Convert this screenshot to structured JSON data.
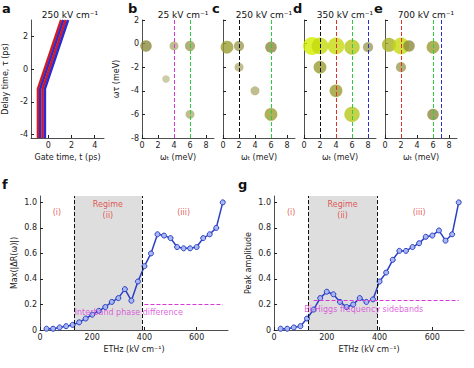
{
  "chart_data": [
    {
      "panel": "a",
      "type": "line",
      "title": "250 kV cm⁻¹",
      "xlabel": "Gate time, t (ps)",
      "ylabel": "Delay time, τ (ps)",
      "xlim": [
        -1.5,
        4.8
      ],
      "xticks": [
        0,
        2,
        4
      ],
      "ylim": [
        -4.2,
        3
      ],
      "yticks": [
        -4,
        -2,
        0,
        2
      ],
      "grid": false,
      "series": [
        {
          "color": "#d7191c",
          "x": [
            -0.9,
            -0.9,
            1.1
          ],
          "values": [
            -4.2,
            -1.2,
            3.0
          ]
        },
        {
          "color": "#2b2bd0",
          "x": [
            -0.7,
            -0.7,
            1.3
          ],
          "values": [
            -4.2,
            -1.2,
            3.0
          ]
        },
        {
          "color": "#d7191c",
          "x": [
            -0.5,
            -0.5,
            1.5
          ],
          "values": [
            -4.2,
            -1.2,
            3.0
          ]
        },
        {
          "color": "#2b2bd0",
          "x": [
            -0.3,
            -0.3,
            1.7
          ],
          "values": [
            -4.2,
            -1.2,
            3.0
          ]
        }
      ]
    },
    {
      "panel": "b",
      "type": "bubble",
      "title": "25 kV cm⁻¹",
      "xlabel": "ωₜ (meV)",
      "ylabel": "ωτ (meV)",
      "xlim": [
        0,
        9
      ],
      "xticks": [
        0,
        2,
        4,
        6,
        8
      ],
      "ylim": [
        -8,
        2
      ],
      "yticks": [
        -8,
        -6,
        -4,
        -2,
        0,
        2
      ],
      "grid": false,
      "x": [
        0.5,
        4,
        6,
        3,
        6
      ],
      "y": [
        -0.2,
        -0.2,
        -0.2,
        -3,
        -6
      ],
      "amplitude": [
        0.5,
        0.3,
        0.4,
        0.2,
        0.3
      ],
      "amplitude_range": [
        0,
        1
      ],
      "vlines": [
        {
          "value": 4,
          "color": "#d63ad6"
        },
        {
          "value": 6,
          "color": "#2ecc40"
        }
      ],
      "line_style": "dashed"
    },
    {
      "panel": "c",
      "type": "bubble",
      "title": "250 kV cm⁻¹",
      "xlabel": "ωₜ (meV)",
      "tick_labels": "x",
      "xlim": [
        0,
        9
      ],
      "xticks": [
        0,
        2,
        4,
        6,
        8
      ],
      "ylim": [
        -8,
        2
      ],
      "yticks": [
        -8,
        -6,
        -4,
        -2,
        0,
        2
      ],
      "grid": false,
      "x": [
        0.5,
        2,
        6,
        2,
        4,
        6
      ],
      "y": [
        -0.3,
        -0.2,
        -0.3,
        -2,
        -4,
        -6
      ],
      "amplitude": [
        0.6,
        0.4,
        0.5,
        0.3,
        0.3,
        0.6
      ],
      "amplitude_range": [
        0,
        1
      ],
      "vlines": [
        {
          "value": 2,
          "color": "#111111"
        },
        {
          "value": 6,
          "color": "#2ecc40"
        }
      ],
      "line_style": "dashed"
    },
    {
      "panel": "d",
      "type": "bubble",
      "title": "350 kV cm⁻¹",
      "xlabel": "ωₜ (meV)",
      "tick_labels": "x",
      "xlim": [
        0,
        9
      ],
      "xticks": [
        0,
        2,
        4,
        6,
        8
      ],
      "ylim": [
        -8,
        2
      ],
      "yticks": [
        -8,
        -6,
        -4,
        -2,
        0,
        2
      ],
      "grid": false,
      "x": [
        1,
        2,
        4,
        6,
        8,
        2,
        4,
        6
      ],
      "y": [
        -0.2,
        -0.2,
        -0.2,
        -0.3,
        -0.3,
        -2,
        -4,
        -6
      ],
      "amplitude": [
        1.0,
        0.9,
        0.9,
        0.8,
        0.4,
        0.6,
        0.6,
        0.8
      ],
      "amplitude_range": [
        0,
        1
      ],
      "vlines": [
        {
          "value": 2,
          "color": "#111111"
        },
        {
          "value": 4,
          "color": "#e0302a"
        },
        {
          "value": 6,
          "color": "#2ecc40"
        },
        {
          "value": 8,
          "color": "#2b2bd0"
        }
      ],
      "line_style": "dashed"
    },
    {
      "panel": "e",
      "type": "bubble",
      "title": "700 kV cm⁻¹",
      "xlabel": "ωₜ (meV)",
      "tick_labels": "x",
      "xlim": [
        0,
        9
      ],
      "xticks": [
        0,
        2,
        4,
        6,
        8
      ],
      "ylim": [
        -8,
        2
      ],
      "yticks": [
        -8,
        -6,
        -4,
        -2,
        0,
        2
      ],
      "grid": false,
      "x": [
        0.5,
        2,
        3,
        6,
        2,
        6
      ],
      "y": [
        -0.1,
        -0.2,
        -0.2,
        -0.3,
        -2,
        -6
      ],
      "amplitude": [
        0.7,
        0.9,
        0.5,
        0.6,
        0.4,
        0.5
      ],
      "amplitude_range": [
        0,
        1
      ],
      "vlines": [
        {
          "value": 2,
          "color": "#e0302a"
        },
        {
          "value": 6,
          "color": "#2ecc40"
        },
        {
          "value": 7,
          "color": "#2b2bd0"
        }
      ],
      "line_style": "dashed"
    },
    {
      "panel": "f",
      "type": "line",
      "xlabel": "ETHz (kV cm⁻¹)",
      "ylabel": "Max(|ΔR(ω)|)",
      "xlim": [
        0,
        720
      ],
      "xticks": [
        0,
        200,
        400,
        600
      ],
      "ylim": [
        0,
        1.05
      ],
      "yticks": [
        0,
        0.2,
        0.4,
        0.6,
        0.8,
        {
          "value": 1,
          "label": "1.0"
        }
      ],
      "grid": false,
      "color": "#2a3fc4",
      "marker": "circle",
      "x": [
        25,
        50,
        75,
        100,
        125,
        150,
        175,
        200,
        225,
        250,
        275,
        300,
        325,
        350,
        375,
        400,
        425,
        450,
        475,
        500,
        525,
        550,
        575,
        600,
        625,
        650,
        675,
        700
      ],
      "values": [
        0.01,
        0.01,
        0.02,
        0.03,
        0.04,
        0.06,
        0.09,
        0.12,
        0.15,
        0.18,
        0.22,
        0.25,
        0.32,
        0.23,
        0.38,
        0.5,
        0.6,
        0.75,
        0.74,
        0.72,
        0.65,
        0.64,
        0.64,
        0.65,
        0.72,
        0.75,
        0.8,
        1.0
      ],
      "shaded": {
        "from": 130,
        "to": 390
      },
      "reference": {
        "value": 0.2,
        "from": 400,
        "to": 700,
        "color": "#d63ad6"
      },
      "annotations": [
        {
          "text": "(i)",
          "x": 65,
          "y": 0.92,
          "color": "#e0302a"
        },
        {
          "text": "Regime",
          "x": 260,
          "y": 0.98,
          "color": "#e0302a"
        },
        {
          "text": "(ii)",
          "x": 260,
          "y": 0.9,
          "color": "#e0302a"
        },
        {
          "text": "(iii)",
          "x": 550,
          "y": 0.92,
          "color": "#e0302a"
        },
        {
          "text": "Interband phase difference",
          "x": 340,
          "y": 0.14,
          "color": "#d63ad6"
        }
      ]
    },
    {
      "panel": "g",
      "type": "line",
      "xlabel": "ETHz (kV cm⁻¹)",
      "ylabel": "Peak amplitude",
      "xlim": [
        0,
        720
      ],
      "xticks": [
        0,
        200,
        400,
        600
      ],
      "ylim": [
        0,
        1.05
      ],
      "yticks": [
        0,
        0.2,
        0.4,
        0.6,
        0.8,
        {
          "value": 1,
          "label": "1.0"
        }
      ],
      "grid": false,
      "color": "#2a3fc4",
      "marker": "circle",
      "x": [
        25,
        50,
        75,
        100,
        125,
        150,
        175,
        200,
        225,
        250,
        275,
        300,
        325,
        350,
        375,
        400,
        425,
        450,
        475,
        500,
        525,
        550,
        575,
        600,
        625,
        650,
        675,
        700
      ],
      "values": [
        0.01,
        0.01,
        0.02,
        0.03,
        0.09,
        0.16,
        0.25,
        0.3,
        0.28,
        0.22,
        0.18,
        0.2,
        0.25,
        0.22,
        0.24,
        0.38,
        0.45,
        0.55,
        0.62,
        0.62,
        0.65,
        0.68,
        0.73,
        0.74,
        0.78,
        0.7,
        0.75,
        1.0
      ],
      "shaded": {
        "from": 130,
        "to": 390
      },
      "reference": {
        "value": 0.23,
        "from": 150,
        "to": 700,
        "color": "#d63ad6"
      },
      "annotations": [
        {
          "text": "(i)",
          "x": 65,
          "y": 0.92,
          "color": "#e0302a"
        },
        {
          "text": "Regime",
          "x": 260,
          "y": 0.98,
          "color": "#e0302a"
        },
        {
          "text": "(ii)",
          "x": 260,
          "y": 0.9,
          "color": "#e0302a"
        },
        {
          "text": "(iii)",
          "x": 550,
          "y": 0.92,
          "color": "#e0302a"
        },
        {
          "text": "Bi-Higgs frequency sidebands",
          "x": 340,
          "y": 0.16,
          "color": "#d63ad6"
        }
      ]
    }
  ]
}
